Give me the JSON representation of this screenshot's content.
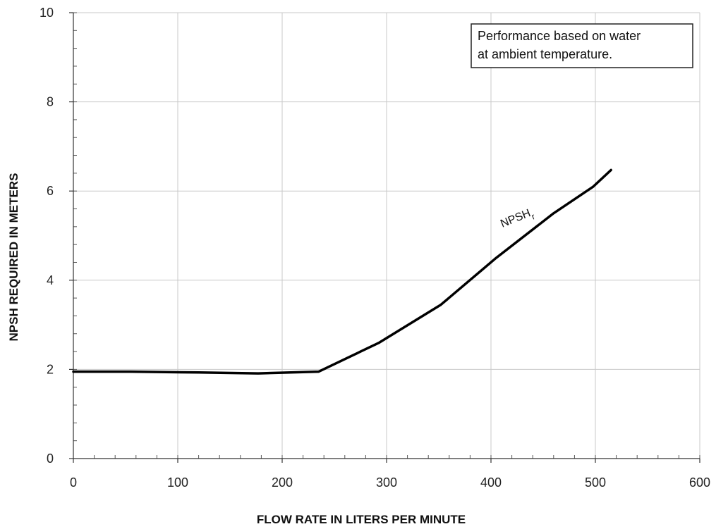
{
  "chart_data": {
    "type": "line",
    "title": "",
    "xlabel": "FLOW RATE IN LITERS PER MINUTE",
    "ylabel": "NPSH REQUIRED IN METERS",
    "xlim": [
      0,
      600
    ],
    "ylim": [
      0,
      10
    ],
    "x_ticks": [
      0,
      100,
      200,
      300,
      400,
      500,
      600
    ],
    "y_ticks": [
      0,
      2,
      4,
      6,
      8,
      10
    ],
    "grid": true,
    "note": [
      "Performance based on water",
      "at ambient temperature."
    ],
    "series": [
      {
        "label_main": "NPSH",
        "label_sub": "r",
        "x": [
          0,
          55,
          120,
          177,
          235,
          293,
          352,
          405,
          460,
          498,
          515
        ],
        "y": [
          1.95,
          1.95,
          1.93,
          1.91,
          1.95,
          2.6,
          3.45,
          4.5,
          5.5,
          6.1,
          6.47
        ]
      }
    ]
  }
}
